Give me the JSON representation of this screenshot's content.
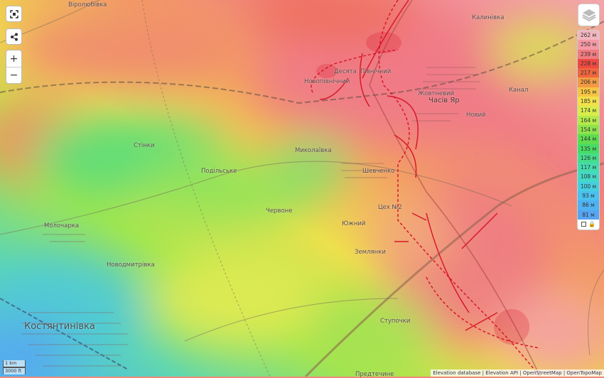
{
  "map": {
    "places": [
      {
        "name": "Віролюбівка"
      },
      {
        "name": "Калинівка"
      },
      {
        "name": "Десята"
      },
      {
        "name": "Північний"
      },
      {
        "name": "Новопівнічний"
      },
      {
        "name": "Жовтневий"
      },
      {
        "name": "Часів Яр"
      },
      {
        "name": "Новий"
      },
      {
        "name": "Канал"
      },
      {
        "name": "Стінки"
      },
      {
        "name": "Миколаївка"
      },
      {
        "name": "Подільське"
      },
      {
        "name": "Шевченко"
      },
      {
        "name": "Червоне"
      },
      {
        "name": "Цех №2"
      },
      {
        "name": "Южний"
      },
      {
        "name": "Молочарка"
      },
      {
        "name": "Новодмитрівка"
      },
      {
        "name": "Землянки"
      },
      {
        "name": "Ступочки"
      },
      {
        "name": "Костянтинівка"
      },
      {
        "name": "Предтечине"
      }
    ],
    "front_color": "#d7192a"
  },
  "controls": {
    "zoom_in": "+",
    "zoom_out": "−",
    "fullscreen_icon": "fullscreen-icon",
    "share_icon": "share-icon",
    "layers_icon": "layers-icon"
  },
  "legend": {
    "items": [
      {
        "label": "262 м",
        "color": "#f3b6bf"
      },
      {
        "label": "250 м",
        "color": "#f49aa5"
      },
      {
        "label": "239 м",
        "color": "#f07c80"
      },
      {
        "label": "228 м",
        "color": "#ee4a42"
      },
      {
        "label": "217 м",
        "color": "#f0653f"
      },
      {
        "label": "206 м",
        "color": "#f39a42"
      },
      {
        "label": "195 м",
        "color": "#f6c543"
      },
      {
        "label": "185 м",
        "color": "#f3e14a"
      },
      {
        "label": "174 м",
        "color": "#d9ec4b"
      },
      {
        "label": "164 м",
        "color": "#b3ea4a"
      },
      {
        "label": "154 м",
        "color": "#8ee34c"
      },
      {
        "label": "144 м",
        "color": "#5edd4f"
      },
      {
        "label": "135 м",
        "color": "#47dc64"
      },
      {
        "label": "126 м",
        "color": "#45dd8b"
      },
      {
        "label": "117 м",
        "color": "#45dcad"
      },
      {
        "label": "108 м",
        "color": "#44d9c6"
      },
      {
        "label": "100 м",
        "color": "#45cfe0"
      },
      {
        "label": "93 м",
        "color": "#4ac1ee"
      },
      {
        "label": "86 м",
        "color": "#4fb2f2"
      },
      {
        "label": "81 м",
        "color": "#56a5f2"
      }
    ]
  },
  "scale": {
    "metric": "1 km",
    "imperial": "3000 ft"
  },
  "attribution": [
    "Elevation database",
    "Elevation API",
    "OpenStreetMap",
    "OpenTopoMap"
  ]
}
